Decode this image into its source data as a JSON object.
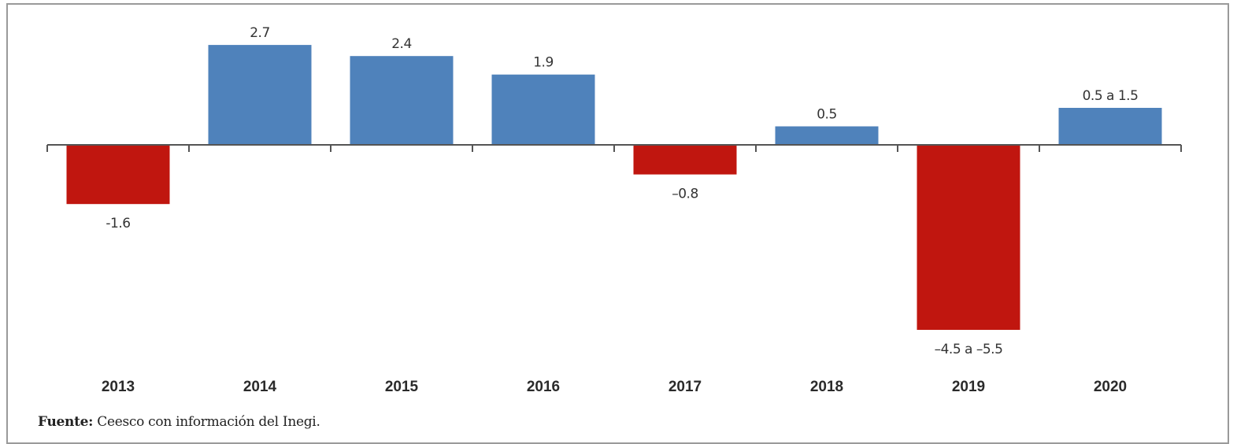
{
  "chart_data": {
    "type": "bar",
    "categories": [
      "2013",
      "2014",
      "2015",
      "2016",
      "2017",
      "2018",
      "2019",
      "2020"
    ],
    "values": [
      -1.6,
      2.7,
      2.4,
      1.9,
      -0.8,
      0.5,
      -5.0,
      1.0
    ],
    "range_low": [
      null,
      null,
      null,
      null,
      null,
      null,
      -4.5,
      0.5
    ],
    "range_high": [
      null,
      null,
      null,
      null,
      null,
      null,
      -5.5,
      1.5
    ],
    "data_labels": [
      "-1.6",
      "2.7",
      "2.4",
      "1.9",
      "–0.8",
      "0.5",
      "–4.5 a –5.5",
      "0.5 a 1.5"
    ],
    "bar_extent": [
      -1.6,
      2.7,
      2.4,
      1.9,
      -0.8,
      0.5,
      -5.0,
      1.0
    ],
    "title": "",
    "xlabel": "",
    "ylabel": "",
    "ylim": [
      -5.5,
      3.0
    ],
    "grid": false,
    "colors": {
      "positive": "#4f82bb",
      "negative": "#c0160f",
      "axis": "#555555"
    }
  },
  "source": {
    "label": "Fuente:",
    "text": " Ceesco con información del Inegi."
  }
}
